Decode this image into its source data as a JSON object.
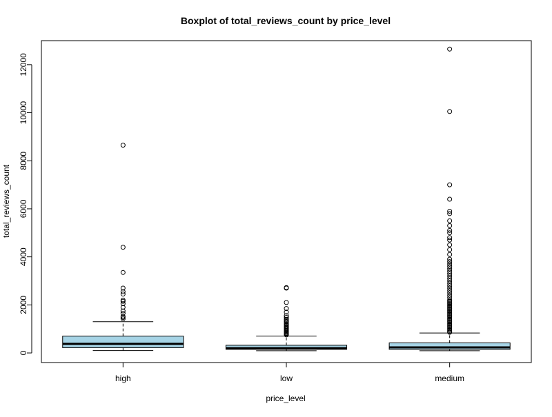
{
  "chart_data": {
    "type": "boxplot",
    "title": "Boxplot of total_reviews_count by price_level",
    "xlabel": "price_level",
    "ylabel": "total_reviews_count",
    "categories": [
      "high",
      "low",
      "medium"
    ],
    "ylim": [
      -400,
      13000
    ],
    "yticks": [
      0,
      2000,
      4000,
      6000,
      8000,
      10000,
      12000
    ],
    "box_color": "#a6d4e6",
    "grid": false,
    "boxes": [
      {
        "category": "high",
        "whisker_low": 100,
        "q1": 220,
        "median": 380,
        "q3": 700,
        "whisker_high": 1300,
        "outliers": [
          1420,
          1480,
          1520,
          1650,
          1750,
          1900,
          2050,
          2150,
          2200,
          2450,
          2550,
          2700,
          3350,
          4400,
          8650
        ]
      },
      {
        "category": "low",
        "whisker_low": 90,
        "q1": 150,
        "median": 200,
        "q3": 320,
        "whisker_high": 700,
        "outliers": [
          750,
          790,
          820,
          860,
          900,
          940,
          980,
          1020,
          1060,
          1100,
          1150,
          1200,
          1250,
          1300,
          1350,
          1400,
          1480,
          1550,
          1700,
          1850,
          2100,
          2700,
          2720
        ]
      },
      {
        "category": "medium",
        "whisker_low": 90,
        "q1": 150,
        "median": 230,
        "q3": 420,
        "whisker_high": 830,
        "outliers": [
          860,
          900,
          950,
          1000,
          1050,
          1100,
          1150,
          1200,
          1250,
          1300,
          1350,
          1400,
          1450,
          1500,
          1550,
          1600,
          1650,
          1700,
          1750,
          1800,
          1850,
          1900,
          1950,
          2000,
          2050,
          2100,
          2150,
          2200,
          2300,
          2400,
          2500,
          2600,
          2700,
          2800,
          2900,
          3000,
          3100,
          3200,
          3300,
          3400,
          3500,
          3600,
          3700,
          3800,
          3900,
          4100,
          4300,
          4500,
          4700,
          4800,
          5000,
          5100,
          5300,
          5500,
          5800,
          5900,
          6400,
          7000,
          10050,
          12650
        ]
      }
    ]
  }
}
